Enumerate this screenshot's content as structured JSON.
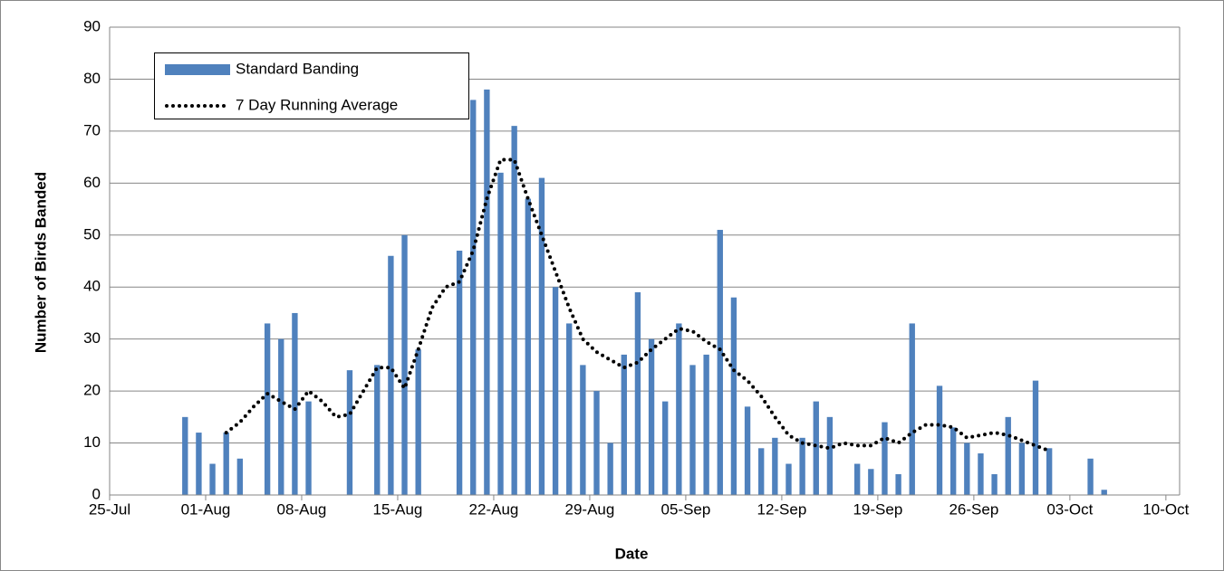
{
  "chart_data": {
    "type": "bar",
    "y_label": "Number of Birds Banded",
    "x_label": "Date",
    "xlim": [
      "25-Jul",
      "11-Oct"
    ],
    "xticks": [
      "25-Jul",
      "01-Aug",
      "08-Aug",
      "15-Aug",
      "22-Aug",
      "29-Aug",
      "05-Sep",
      "12-Sep",
      "19-Sep",
      "26-Sep",
      "03-Oct",
      "10-Oct"
    ],
    "ylim": [
      0,
      90
    ],
    "yticks": [
      0,
      10,
      20,
      30,
      40,
      50,
      60,
      70,
      80,
      90
    ],
    "grid": true,
    "legend": "upper left",
    "series": [
      {
        "name": "Standard Banding",
        "type": "bar",
        "color": "#4f81bd",
        "x": [
          "30-Jul",
          "31-Jul",
          "01-Aug",
          "02-Aug",
          "03-Aug",
          "05-Aug",
          "06-Aug",
          "07-Aug",
          "08-Aug",
          "11-Aug",
          "13-Aug",
          "14-Aug",
          "15-Aug",
          "16-Aug",
          "19-Aug",
          "20-Aug",
          "21-Aug",
          "22-Aug",
          "23-Aug",
          "24-Aug",
          "25-Aug",
          "26-Aug",
          "27-Aug",
          "28-Aug",
          "29-Aug",
          "30-Aug",
          "31-Aug",
          "01-Sep",
          "02-Sep",
          "03-Sep",
          "04-Sep",
          "05-Sep",
          "06-Sep",
          "07-Sep",
          "08-Sep",
          "09-Sep",
          "10-Sep",
          "11-Sep",
          "12-Sep",
          "13-Sep",
          "14-Sep",
          "15-Sep",
          "17-Sep",
          "18-Sep",
          "19-Sep",
          "20-Sep",
          "21-Sep",
          "23-Sep",
          "24-Sep",
          "25-Sep",
          "26-Sep",
          "27-Sep",
          "28-Sep",
          "29-Sep",
          "30-Sep",
          "01-Oct",
          "04-Oct",
          "05-Oct"
        ],
        "values": [
          15,
          12,
          6,
          12,
          7,
          33,
          30,
          35,
          18,
          24,
          25,
          46,
          50,
          28,
          47,
          76,
          78,
          62,
          71,
          57,
          61,
          40,
          33,
          25,
          20,
          10,
          27,
          39,
          30,
          18,
          33,
          25,
          27,
          51,
          38,
          17,
          9,
          11,
          6,
          11,
          18,
          15,
          6,
          5,
          14,
          4,
          33,
          21,
          13,
          10,
          8,
          4,
          15,
          10,
          22,
          9,
          7,
          1
        ]
      },
      {
        "name": "7 Day Running Average",
        "type": "line",
        "color": "#000000",
        "x": [
          "02-Aug",
          "03-Aug",
          "04-Aug",
          "05-Aug",
          "06-Aug",
          "07-Aug",
          "08-Aug",
          "09-Aug",
          "10-Aug",
          "11-Aug",
          "12-Aug",
          "13-Aug",
          "14-Aug",
          "15-Aug",
          "16-Aug",
          "17-Aug",
          "18-Aug",
          "19-Aug",
          "20-Aug",
          "21-Aug",
          "22-Aug",
          "23-Aug",
          "24-Aug",
          "25-Aug",
          "26-Aug",
          "27-Aug",
          "28-Aug",
          "29-Aug",
          "30-Aug",
          "31-Aug",
          "01-Sep",
          "02-Sep",
          "03-Sep",
          "04-Sep",
          "05-Sep",
          "06-Sep",
          "07-Sep",
          "08-Sep",
          "09-Sep",
          "10-Sep",
          "11-Sep",
          "12-Sep",
          "13-Sep",
          "14-Sep",
          "15-Sep",
          "16-Sep",
          "17-Sep",
          "18-Sep",
          "19-Sep",
          "20-Sep",
          "21-Sep",
          "22-Sep",
          "23-Sep",
          "24-Sep",
          "25-Sep",
          "26-Sep",
          "27-Sep",
          "28-Sep",
          "29-Sep",
          "30-Sep",
          "01-Oct"
        ],
        "values": [
          12,
          14,
          17,
          19.5,
          18,
          16.5,
          20,
          18,
          15,
          15.5,
          20,
          24.5,
          24.5,
          20.5,
          28,
          36,
          40,
          41,
          47,
          57,
          64.5,
          64.5,
          57,
          50,
          43,
          36,
          30,
          27.5,
          26,
          24.5,
          25.5,
          28,
          30,
          32,
          31.5,
          29.5,
          28,
          24,
          22,
          19,
          15,
          11.5,
          10,
          9.5,
          9,
          10,
          9.5,
          9.5,
          11,
          10,
          12,
          13.5,
          13.5,
          13,
          11,
          11.5,
          12,
          11.5,
          10.5,
          9.5,
          8.5
        ]
      }
    ]
  }
}
